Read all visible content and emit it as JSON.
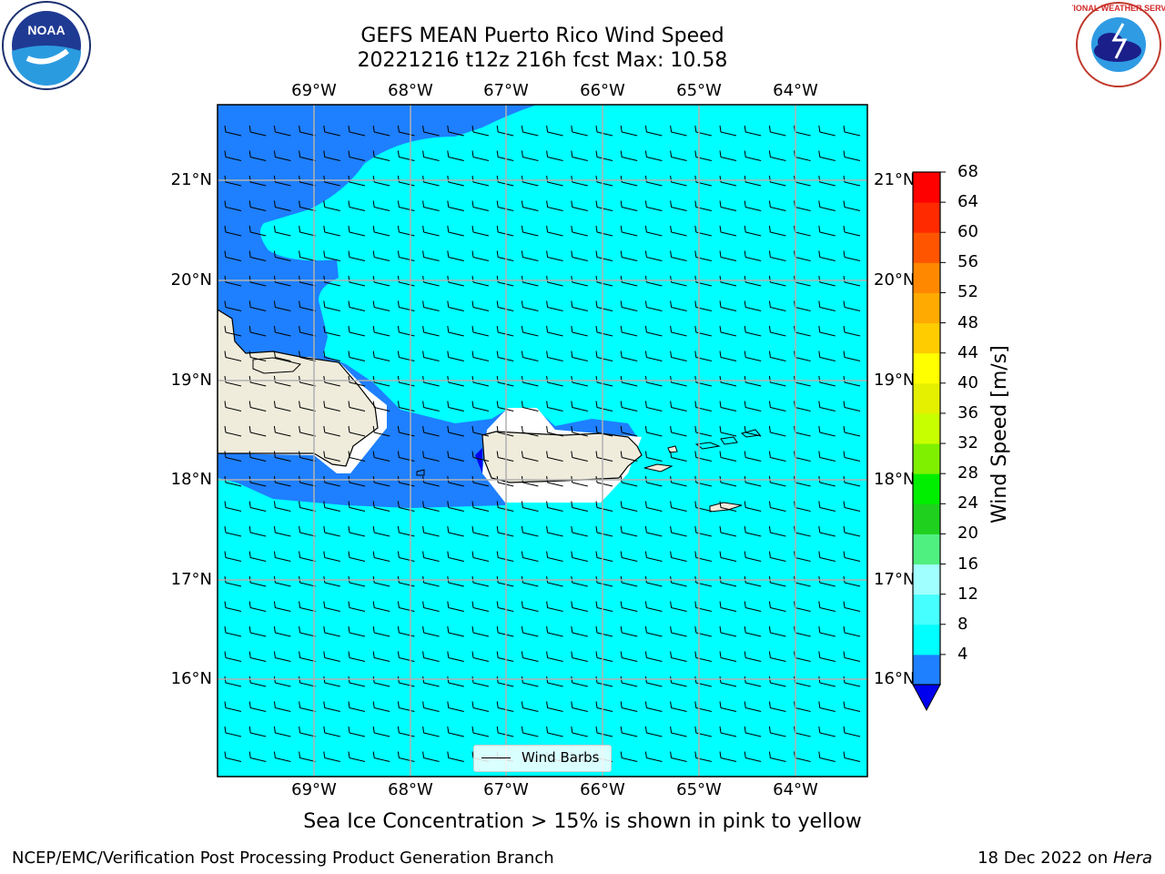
{
  "title": {
    "line1": "GEFS MEAN Puerto Rico Wind Speed",
    "line2": "20221216 t12z 216h fcst   Max: 10.58"
  },
  "map": {
    "lon_labels": [
      "69°W",
      "68°W",
      "67°W",
      "66°W",
      "65°W",
      "64°W"
    ],
    "lat_labels": [
      "21°N",
      "20°N",
      "19°N",
      "18°N",
      "17°N",
      "16°N"
    ],
    "colors": {
      "ocean_cyan": "#00ffff",
      "band_blue": "#1e7fff",
      "deep_blue": "#0000f0",
      "land": "#efecdc",
      "grid": "#b0b0b0"
    }
  },
  "legend": {
    "label": "Wind Barbs"
  },
  "colorbar": {
    "label": "Wind Speed [m/s]",
    "ticks": [
      "68",
      "64",
      "60",
      "56",
      "52",
      "48",
      "44",
      "40",
      "36",
      "32",
      "28",
      "24",
      "20",
      "16",
      "12",
      "8",
      "4"
    ],
    "colors": [
      "#0000ee",
      "#1e7fff",
      "#00ffff",
      "#46ffff",
      "#a0ffff",
      "#50f080",
      "#1fd01f",
      "#00ee00",
      "#7ff000",
      "#c8ff00",
      "#e4f000",
      "#ffff00",
      "#ffcc00",
      "#ffaa00",
      "#ff8800",
      "#ff5500",
      "#ff2a00",
      "#ff0000"
    ]
  },
  "logos": {
    "noaa": {
      "text": "NOAA"
    },
    "nws": {
      "ring_text": "NATIONAL WEATHER SERVICE"
    }
  },
  "note": "Sea Ice Concentration > 15% is shown in pink to yellow",
  "footer": {
    "left": "NCEP/EMC/Verification Post Processing Product Generation Branch",
    "right_prefix": "18 Dec 2022 on ",
    "right_machine": "Hera"
  }
}
